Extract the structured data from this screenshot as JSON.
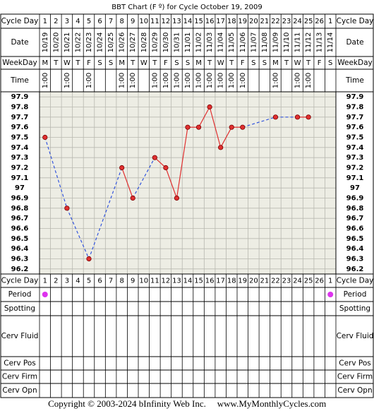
{
  "chart_data": {
    "type": "line",
    "title": "BBT Chart (F º) for Cycle October 19, 2009",
    "categories": [
      1,
      2,
      3,
      4,
      5,
      6,
      7,
      8,
      9,
      10,
      11,
      12,
      13,
      14,
      15,
      16,
      17,
      18,
      19,
      20,
      21,
      22,
      23,
      24,
      25,
      26,
      1
    ],
    "values": [
      97.5,
      null,
      96.8,
      null,
      96.3,
      null,
      null,
      97.2,
      96.9,
      null,
      97.3,
      97.2,
      96.9,
      97.6,
      97.6,
      97.8,
      97.4,
      97.6,
      97.6,
      null,
      null,
      97.7,
      null,
      97.7,
      97.7,
      null,
      null
    ],
    "color": "#e03030",
    "gap_color": "#3355dd",
    "ylim": [
      96.15,
      97.95
    ],
    "yticks": [
      97.9,
      97.8,
      97.7,
      97.6,
      97.5,
      97.4,
      97.3,
      97.2,
      97.1,
      97.0,
      96.9,
      96.8,
      96.7,
      96.6,
      96.5,
      96.4,
      96.3,
      96.2
    ],
    "grid": true
  },
  "row_labels": {
    "cycle_day": "Cycle Day",
    "date": "Date",
    "weekday": "WeekDay",
    "time": "Time",
    "period": "Period",
    "spotting": "Spotting",
    "cerv_fluid": "Cerv Fluid",
    "cerv_pos": "Cerv Pos",
    "cerv_firm": "Cerv Firm",
    "cerv_opn": "Cerv Opn"
  },
  "dates": [
    "10/19",
    "10/20",
    "10/21",
    "10/22",
    "10/23",
    "10/24",
    "10/25",
    "10/26",
    "10/27",
    "10/28",
    "10/29",
    "10/30",
    "10/31",
    "11/01",
    "11/02",
    "11/03",
    "11/04",
    "11/05",
    "11/06",
    "11/07",
    "11/08",
    "11/09",
    "11/10",
    "11/11",
    "11/12",
    "11/13",
    "11/14"
  ],
  "weekdays": [
    "M",
    "T",
    "W",
    "T",
    "F",
    "S",
    "S",
    "M",
    "T",
    "W",
    "T",
    "F",
    "S",
    "S",
    "M",
    "T",
    "W",
    "T",
    "F",
    "S",
    "S",
    "M",
    "T",
    "W",
    "T",
    "F",
    "S"
  ],
  "times": [
    "1:00",
    null,
    "1:00",
    null,
    "1:00",
    null,
    null,
    "1:00",
    "1:00",
    null,
    "1:00",
    "1:00",
    "1:00",
    "1:00",
    "1:00",
    "1:00",
    "1:00",
    "1:00",
    "1:00",
    null,
    null,
    "1:00",
    null,
    "1:00",
    "1:00",
    null,
    null
  ],
  "period": [
    true,
    false,
    false,
    false,
    false,
    false,
    false,
    false,
    false,
    false,
    false,
    false,
    false,
    false,
    false,
    false,
    false,
    false,
    false,
    false,
    false,
    false,
    false,
    false,
    false,
    false,
    true
  ],
  "period_color": "#dd33ee",
  "footer": {
    "copyright": "Copyright © 2003-2024 bInfinity Web Inc.",
    "site": "www.MyMonthlyCycles.com"
  }
}
